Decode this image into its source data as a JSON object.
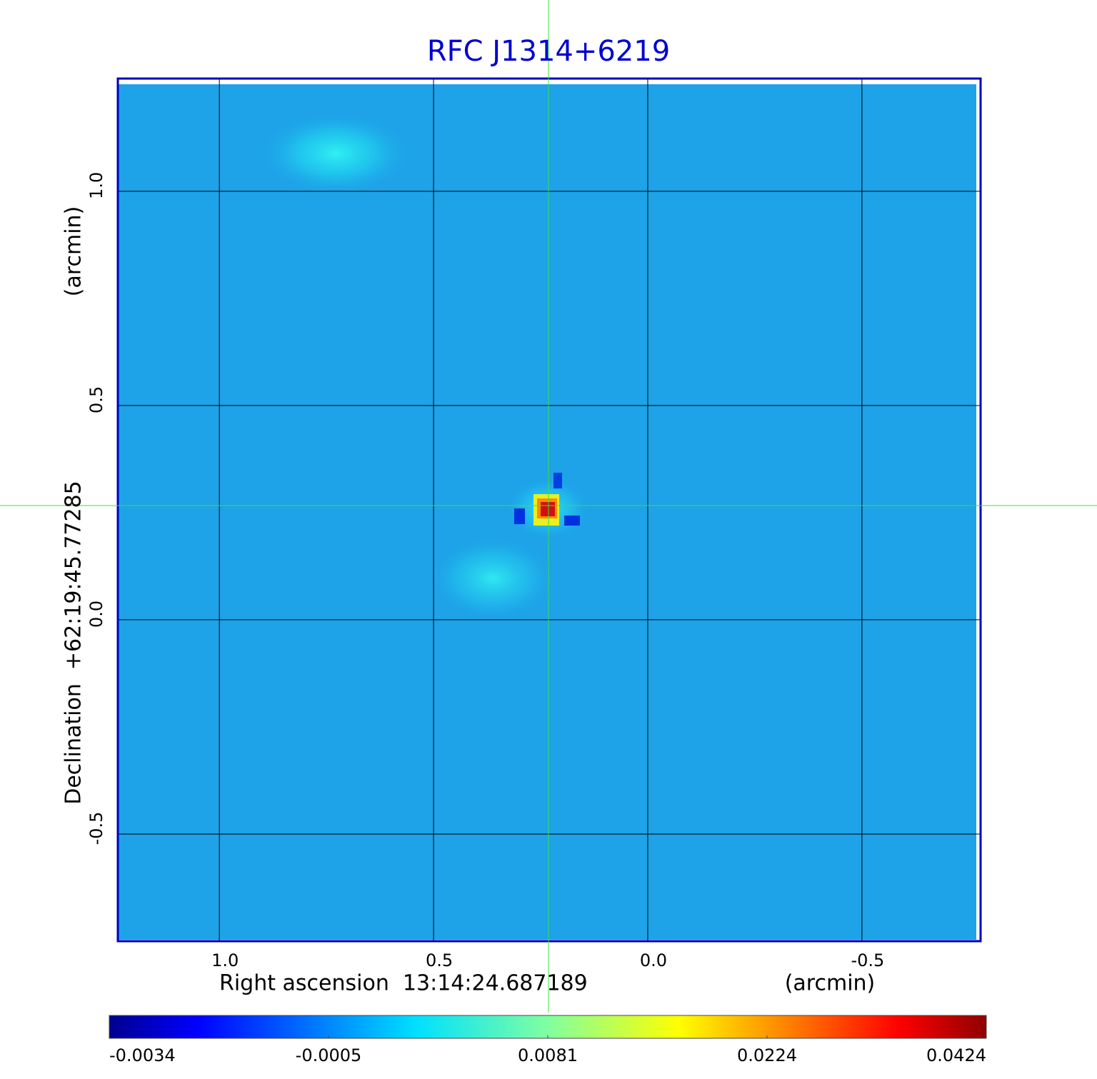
{
  "chart_data": {
    "type": "image",
    "title": "RFC J1314+6219",
    "x_label": "Right ascension  13:14:24.687189",
    "x_unit": "(arcmin)",
    "y_label": "Declination  +62:19:45.77285",
    "y_unit": "(arcmin)",
    "xlim": [
      1.237,
      -0.777
    ],
    "ylim": [
      -0.75,
      1.263
    ],
    "xticks": [
      {
        "value": 1,
        "label": "1.0"
      },
      0.5,
      {
        "value": 0,
        "label": "0.0"
      },
      -0.5
    ],
    "yticks": [
      -0.5,
      {
        "value": 0,
        "label": "0.0"
      },
      0.5,
      {
        "value": 1,
        "label": "1.0"
      }
    ],
    "grid": true,
    "colorbar": {
      "ticks": [
        -0.0034,
        -0.0005,
        0.0081,
        0.0224,
        0.0424
      ]
    }
  }
}
